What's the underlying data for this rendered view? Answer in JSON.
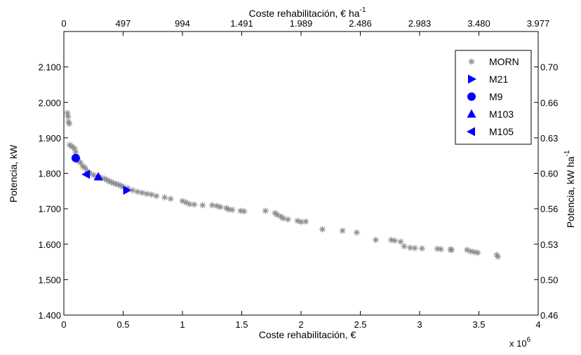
{
  "chart_data": {
    "type": "scatter",
    "title": "",
    "x_bottom": {
      "label": "Coste rehabilitación, €",
      "range": [
        0,
        4000000
      ],
      "ticks": [
        0,
        500000,
        1000000,
        1500000,
        2000000,
        2500000,
        3000000,
        3500000,
        4000000
      ],
      "tick_labels": [
        "0",
        "0.5",
        "1",
        "1.5",
        "2",
        "2.5",
        "3",
        "3.5",
        "4"
      ],
      "exponent_label": "x 10",
      "exponent_sup": "6"
    },
    "x_top": {
      "label": "Coste rehabilitación, € ha",
      "label_sup": "-1",
      "tick_labels": [
        "0",
        "497",
        "994",
        "1.491",
        "1.989",
        "2.486",
        "2.983",
        "3.480",
        "3.977"
      ]
    },
    "y_left": {
      "label": "Potencia, kW",
      "range": [
        1400,
        2200
      ],
      "ticks": [
        1400,
        1500,
        1600,
        1700,
        1800,
        1900,
        2000,
        2100
      ],
      "tick_labels": [
        "1.400",
        "1.500",
        "1.600",
        "1.700",
        "1.800",
        "1.900",
        "2.000",
        "2.100"
      ]
    },
    "y_right": {
      "label": "Potencia, kW ha",
      "label_sup": "-1",
      "tick_labels": [
        "0.46",
        "0.50",
        "0.53",
        "0.56",
        "0.60",
        "0.63",
        "0.66",
        "0.70"
      ]
    },
    "legend_position": "top-right",
    "grid": false,
    "series": [
      {
        "name": "MORN",
        "marker": "asterisk",
        "color": "#8c8c8c",
        "points": [
          [
            30000,
            1970
          ],
          [
            35000,
            1960
          ],
          [
            40000,
            1945
          ],
          [
            45000,
            1940
          ],
          [
            50000,
            1880
          ],
          [
            70000,
            1875
          ],
          [
            90000,
            1870
          ],
          [
            100000,
            1860
          ],
          [
            110000,
            1845
          ],
          [
            120000,
            1835
          ],
          [
            140000,
            1830
          ],
          [
            160000,
            1820
          ],
          [
            180000,
            1815
          ],
          [
            200000,
            1805
          ],
          [
            220000,
            1800
          ],
          [
            250000,
            1795
          ],
          [
            280000,
            1790
          ],
          [
            310000,
            1788
          ],
          [
            340000,
            1785
          ],
          [
            360000,
            1782
          ],
          [
            380000,
            1778
          ],
          [
            400000,
            1775
          ],
          [
            420000,
            1772
          ],
          [
            440000,
            1770
          ],
          [
            460000,
            1768
          ],
          [
            480000,
            1765
          ],
          [
            500000,
            1762
          ],
          [
            540000,
            1758
          ],
          [
            580000,
            1752
          ],
          [
            620000,
            1748
          ],
          [
            660000,
            1745
          ],
          [
            700000,
            1742
          ],
          [
            740000,
            1740
          ],
          [
            780000,
            1736
          ],
          [
            850000,
            1732
          ],
          [
            900000,
            1728
          ],
          [
            1000000,
            1722
          ],
          [
            1030000,
            1718
          ],
          [
            1060000,
            1713
          ],
          [
            1100000,
            1712
          ],
          [
            1170000,
            1710
          ],
          [
            1250000,
            1710
          ],
          [
            1290000,
            1708
          ],
          [
            1320000,
            1705
          ],
          [
            1370000,
            1702
          ],
          [
            1390000,
            1698
          ],
          [
            1420000,
            1697
          ],
          [
            1490000,
            1694
          ],
          [
            1520000,
            1693
          ],
          [
            1700000,
            1694
          ],
          [
            1780000,
            1688
          ],
          [
            1800000,
            1683
          ],
          [
            1830000,
            1678
          ],
          [
            1850000,
            1673
          ],
          [
            1890000,
            1670
          ],
          [
            1970000,
            1666
          ],
          [
            2000000,
            1663
          ],
          [
            2040000,
            1664
          ],
          [
            2180000,
            1642
          ],
          [
            2350000,
            1638
          ],
          [
            2470000,
            1633
          ],
          [
            2630000,
            1612
          ],
          [
            2760000,
            1612
          ],
          [
            2790000,
            1610
          ],
          [
            2840000,
            1607
          ],
          [
            2870000,
            1594
          ],
          [
            2920000,
            1590
          ],
          [
            2960000,
            1589
          ],
          [
            3020000,
            1588
          ],
          [
            3150000,
            1587
          ],
          [
            3180000,
            1586
          ],
          [
            3260000,
            1585
          ],
          [
            3270000,
            1584
          ],
          [
            3400000,
            1584
          ],
          [
            3430000,
            1580
          ],
          [
            3460000,
            1578
          ],
          [
            3490000,
            1576
          ],
          [
            3650000,
            1570
          ],
          [
            3660000,
            1565
          ]
        ]
      },
      {
        "name": "M21",
        "marker": "triangle-right",
        "color": "#0000ff",
        "points": [
          [
            530000,
            1752
          ]
        ]
      },
      {
        "name": "M9",
        "marker": "circle",
        "color": "#0000ff",
        "points": [
          [
            100000,
            1843
          ]
        ]
      },
      {
        "name": "M103",
        "marker": "triangle-up",
        "color": "#0000ff",
        "points": [
          [
            290000,
            1790
          ]
        ]
      },
      {
        "name": "M105",
        "marker": "triangle-left",
        "color": "#0000ff",
        "points": [
          [
            190000,
            1797
          ]
        ]
      }
    ]
  }
}
